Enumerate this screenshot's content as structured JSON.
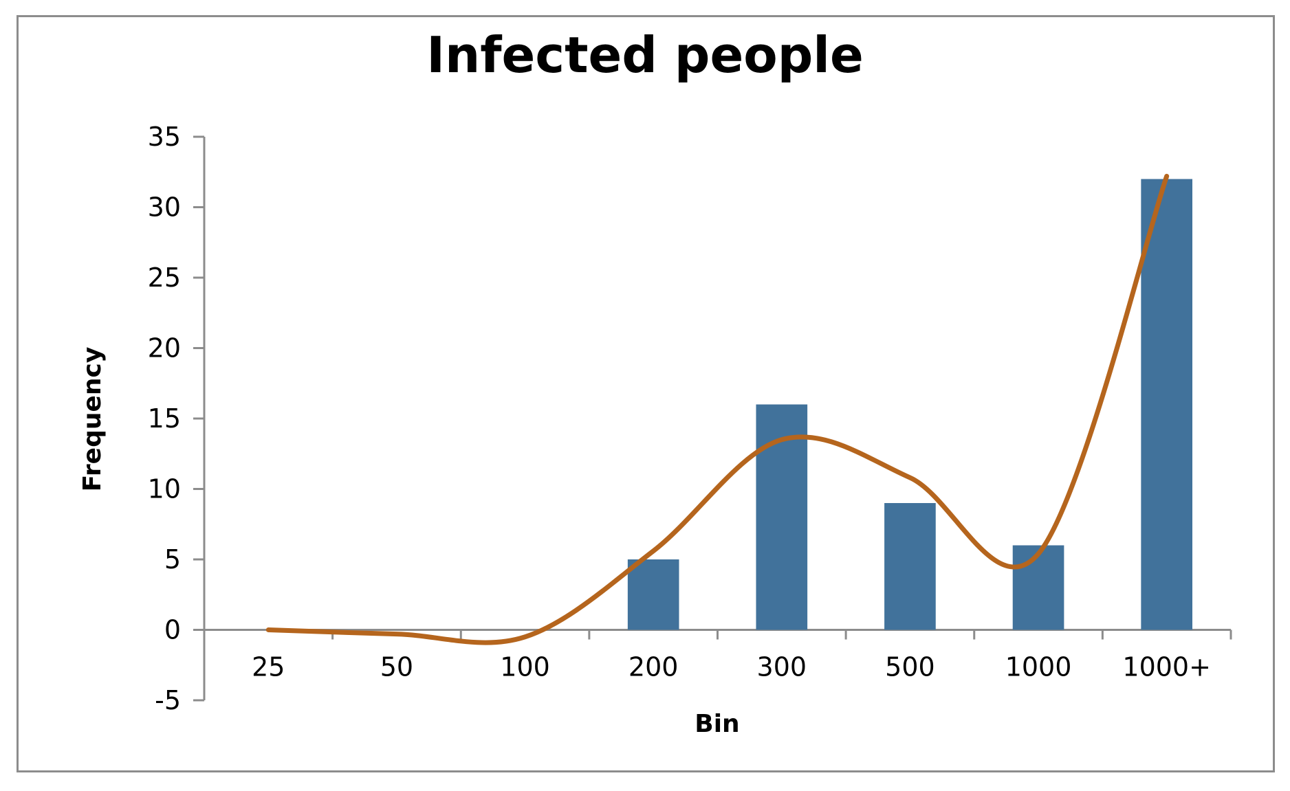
{
  "chart_data": {
    "type": "bar",
    "title": "Infected people",
    "xlabel": "Bin",
    "ylabel": "Frequency",
    "categories": [
      "25",
      "50",
      "100",
      "200",
      "300",
      "500",
      "1000",
      "1000+"
    ],
    "series": [
      {
        "values": [
          0,
          0,
          0,
          5,
          16,
          9,
          6,
          32
        ],
        "color": "#41729b"
      }
    ],
    "trendline": {
      "type": "polynomial",
      "color": "#b5651d",
      "points": [
        {
          "x": "25",
          "y": 0
        },
        {
          "x": "50",
          "y": -0.3
        },
        {
          "x": "100",
          "y": -0.5
        },
        {
          "x": "200",
          "y": 5.6
        },
        {
          "x": "300",
          "y": 13.5
        },
        {
          "x": "500",
          "y": 10.8
        },
        {
          "x": "1000",
          "y": 5.4
        },
        {
          "x": "1000+",
          "y": 32.2
        }
      ]
    },
    "ylim": [
      -5,
      35
    ],
    "yticks": [
      35,
      30,
      25,
      20,
      15,
      10,
      5,
      0,
      -5
    ],
    "grid": false,
    "legend": "none"
  }
}
